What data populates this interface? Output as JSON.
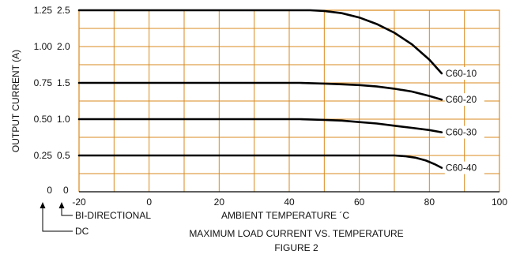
{
  "chart_data": {
    "type": "line",
    "title": "MAXIMUM LOAD CURRENT VS. TEMPERATURE",
    "figure_label": "FIGURE 2",
    "xlabel": "AMBIENT TEMPERATURE ´C",
    "ylabel": "OUTPUT CURRENT (A)",
    "xlim": [
      -20,
      100
    ],
    "ylim": [
      0,
      2.5
    ],
    "x_ticks": [
      "-20",
      "0",
      "20",
      "40",
      "60",
      "80",
      "100"
    ],
    "y_ticks_dc": [
      "0",
      "0.25",
      "0.50",
      "0.75",
      "1.00",
      "1.25"
    ],
    "y_ticks_bidirectional": [
      "0",
      "0.5",
      "1.0",
      "1.5",
      "2.0",
      "2.5"
    ],
    "y_scale_labels": {
      "dc": "DC",
      "bidirectional": "BI-DIRECTIONAL"
    },
    "grid": true,
    "colors": {
      "grid": "#d98a1f",
      "curve": "#000000"
    },
    "series": [
      {
        "name": "C60-10",
        "points": [
          [
            -20,
            2.5
          ],
          [
            46,
            2.5
          ],
          [
            50,
            2.49
          ],
          [
            55,
            2.46
          ],
          [
            60,
            2.4
          ],
          [
            65,
            2.31
          ],
          [
            70,
            2.19
          ],
          [
            75,
            2.03
          ],
          [
            80,
            1.82
          ],
          [
            83.5,
            1.63
          ]
        ]
      },
      {
        "name": "C60-20",
        "points": [
          [
            -20,
            1.5
          ],
          [
            43,
            1.5
          ],
          [
            50,
            1.49
          ],
          [
            55,
            1.48
          ],
          [
            60,
            1.47
          ],
          [
            65,
            1.45
          ],
          [
            70,
            1.42
          ],
          [
            75,
            1.38
          ],
          [
            80,
            1.32
          ],
          [
            83.5,
            1.27
          ]
        ]
      },
      {
        "name": "C60-30",
        "points": [
          [
            -20,
            1.0
          ],
          [
            43,
            1.0
          ],
          [
            50,
            0.99
          ],
          [
            55,
            0.98
          ],
          [
            60,
            0.96
          ],
          [
            65,
            0.94
          ],
          [
            70,
            0.91
          ],
          [
            75,
            0.88
          ],
          [
            80,
            0.85
          ],
          [
            83.5,
            0.82
          ]
        ]
      },
      {
        "name": "C60-40",
        "points": [
          [
            -20,
            0.5
          ],
          [
            70,
            0.5
          ],
          [
            73,
            0.49
          ],
          [
            76,
            0.47
          ],
          [
            79,
            0.43
          ],
          [
            81.5,
            0.38
          ],
          [
            83.5,
            0.33
          ]
        ]
      }
    ]
  }
}
